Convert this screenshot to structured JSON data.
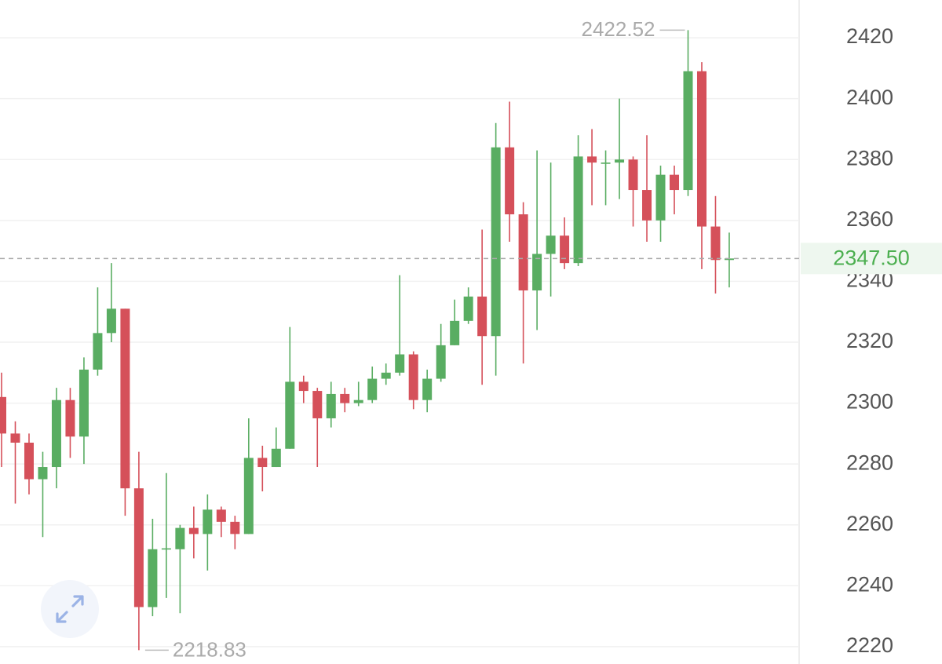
{
  "chart_data": {
    "type": "candlestick",
    "up_color": "#59ad62",
    "down_color": "#d5505a",
    "grid": true,
    "ylim": [
      2214.3,
      2432.4
    ],
    "yticks": [
      2220,
      2240,
      2260,
      2280,
      2300,
      2320,
      2340,
      2360,
      2380,
      2400,
      2420
    ],
    "open": [
      2302,
      2290,
      2287,
      2275,
      2279,
      2301,
      2289,
      2311,
      2323,
      2331,
      2272,
      2233,
      2252,
      2252,
      2259,
      2257,
      2265,
      2261,
      2257,
      2282,
      2279,
      2285,
      2307,
      2304,
      2295,
      2303,
      2300,
      2301,
      2308,
      2310,
      2316,
      2301,
      2308,
      2319,
      2327,
      2335,
      2322,
      2384,
      2362,
      2337,
      2349,
      2355,
      2346,
      2381,
      2379,
      2379,
      2380,
      2370,
      2360,
      2375,
      2370,
      2409,
      2358,
      2347
    ],
    "high": [
      2310,
      2294,
      2290,
      2284,
      2305,
      2305,
      2315,
      2338,
      2346,
      2331,
      2284,
      2262,
      2277,
      2260,
      2266,
      2270,
      2266,
      2263,
      2295,
      2286,
      2292,
      2325,
      2309,
      2305,
      2307,
      2305,
      2307,
      2312,
      2313,
      2342,
      2317,
      2311,
      2326,
      2334,
      2338,
      2357,
      2392,
      2399,
      2366,
      2383,
      2379,
      2361,
      2388,
      2390,
      2383,
      2400,
      2381,
      2388,
      2378,
      2378,
      2422.52,
      2412,
      2368,
      2356
    ],
    "low": [
      2279,
      2267,
      2270,
      2256,
      2272,
      2282,
      2280,
      2309,
      2320,
      2263,
      2218.83,
      2230,
      2236,
      2231,
      2249,
      2245,
      2256,
      2252,
      2257,
      2271,
      2279,
      2285,
      2300,
      2279,
      2292,
      2297,
      2299,
      2300,
      2306,
      2309,
      2298,
      2297,
      2307,
      2319,
      2326,
      2306,
      2309,
      2353,
      2313,
      2324,
      2335,
      2344,
      2345,
      2365,
      2365,
      2367,
      2358,
      2353,
      2353,
      2362,
      2368,
      2344,
      2336,
      2338
    ],
    "close": [
      2290,
      2287,
      2275,
      2279,
      2301,
      2289,
      2311,
      2323,
      2331,
      2272,
      2233,
      2252,
      2252.3,
      2259,
      2257,
      2265,
      2261,
      2257,
      2282,
      2279,
      2285,
      2307,
      2304,
      2295,
      2303,
      2300,
      2301,
      2308,
      2310,
      2316,
      2301,
      2308,
      2319,
      2327,
      2335,
      2322,
      2384,
      2362,
      2337,
      2349,
      2355,
      2346,
      2381,
      2379,
      2379,
      2380,
      2370,
      2360,
      2375,
      2370,
      2409,
      2358,
      2347,
      2347.5
    ],
    "annotations": {
      "max": 2422.52,
      "min": 2218.83,
      "last": {
        "value": 2347.5,
        "label": "2347.50"
      }
    }
  }
}
